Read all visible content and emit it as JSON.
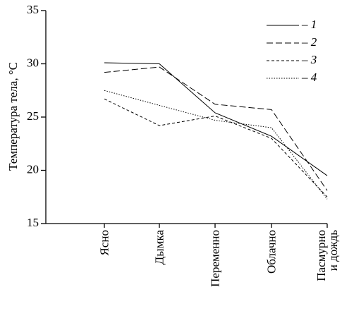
{
  "chart_data": {
    "type": "line",
    "y_label": "Температура тела, °C",
    "categories": [
      "Ясно",
      "Дымка",
      "Переменно",
      "Облачно",
      "Пасмурно и дождь"
    ],
    "series": [
      {
        "name": "– 1",
        "color": "#000000",
        "dash": "none",
        "values": [
          30.1,
          30.0,
          25.4,
          23.2,
          19.5
        ]
      },
      {
        "name": "– 2",
        "color": "#000000",
        "dash": "9 4",
        "values": [
          29.2,
          29.7,
          26.2,
          25.7,
          18.1
        ]
      },
      {
        "name": "– 3",
        "color": "#000000",
        "dash": "4 3",
        "values": [
          26.7,
          24.2,
          25.1,
          23.0,
          17.5
        ]
      },
      {
        "name": "– 4",
        "color": "#000000",
        "dash": "1.5 2",
        "values": [
          27.5,
          26.1,
          24.7,
          24.0,
          17.3
        ]
      }
    ],
    "ylim": [
      15,
      35
    ],
    "yticks": [
      15,
      20,
      25,
      30,
      35
    ]
  }
}
